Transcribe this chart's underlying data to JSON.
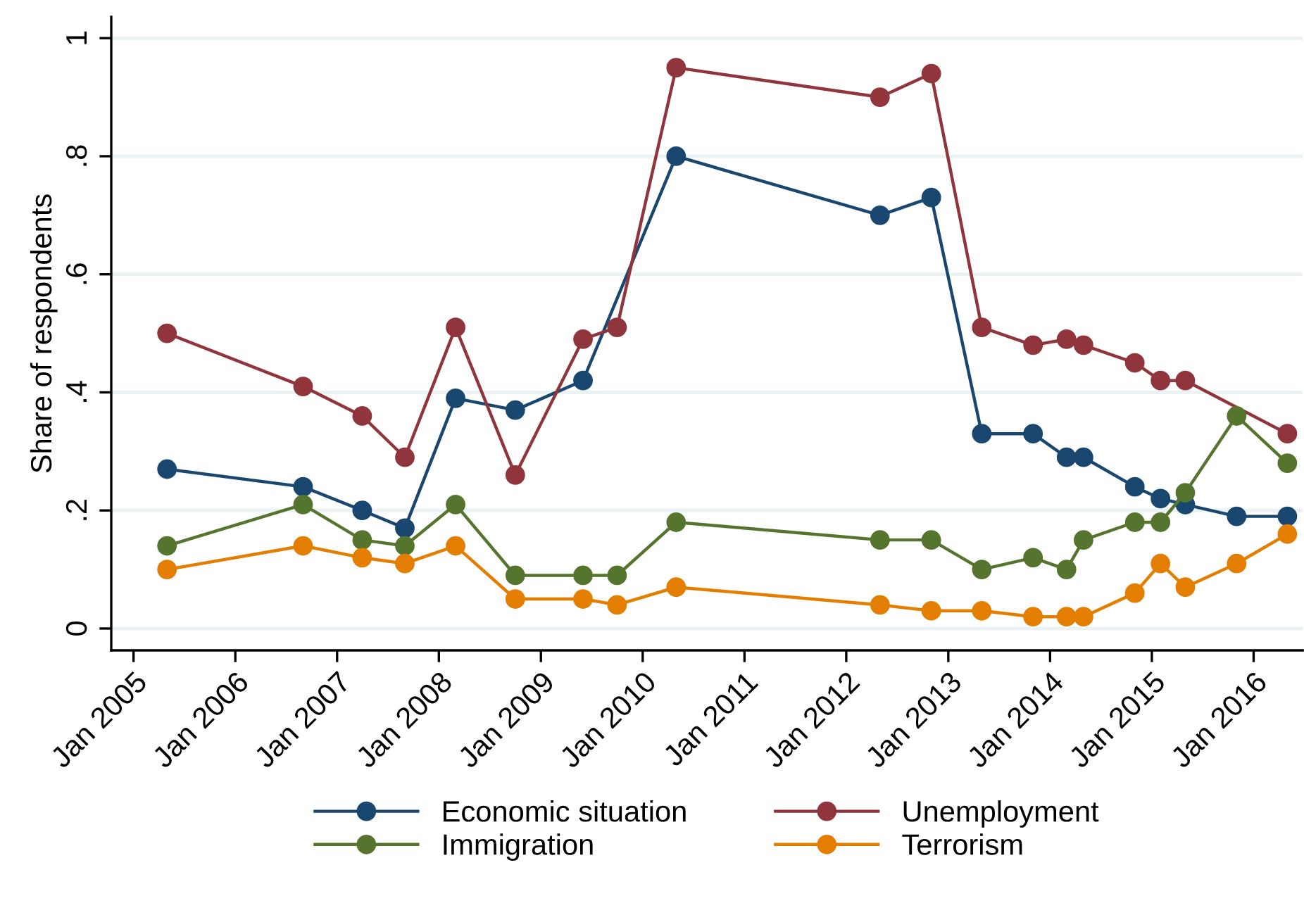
{
  "chart_data": {
    "type": "line",
    "ylabel": "Share of respondents",
    "x": [
      "2005-05",
      "2006-09",
      "2007-04",
      "2007-09",
      "2008-03",
      "2008-10",
      "2009-06",
      "2009-10",
      "2010-05",
      "2012-05",
      "2012-11",
      "2013-05",
      "2013-11",
      "2014-03",
      "2014-05",
      "2014-11",
      "2015-02",
      "2015-05",
      "2015-11",
      "2016-05"
    ],
    "series": [
      {
        "name": "Economic situation",
        "color": "#1a476f",
        "values": [
          0.27,
          0.24,
          0.2,
          0.17,
          0.39,
          0.37,
          0.42,
          null,
          0.8,
          0.7,
          0.73,
          0.33,
          0.33,
          0.29,
          0.29,
          0.24,
          0.22,
          0.21,
          0.19,
          0.19
        ]
      },
      {
        "name": "Unemployment",
        "color": "#90353b",
        "values": [
          0.5,
          0.41,
          0.36,
          0.29,
          0.51,
          0.26,
          0.49,
          0.51,
          0.95,
          0.9,
          0.94,
          0.51,
          0.48,
          0.49,
          0.48,
          0.45,
          0.42,
          0.42,
          null,
          0.33
        ]
      },
      {
        "name": "Immigration",
        "color": "#55752f",
        "values": [
          0.14,
          0.21,
          0.15,
          0.14,
          0.21,
          0.09,
          0.09,
          0.09,
          0.18,
          0.15,
          0.15,
          0.1,
          0.12,
          0.1,
          0.15,
          0.18,
          0.18,
          0.23,
          0.36,
          0.28
        ]
      },
      {
        "name": "Terrorism",
        "color": "#e37e00",
        "values": [
          0.1,
          0.14,
          0.12,
          0.11,
          0.14,
          0.05,
          0.05,
          0.04,
          0.07,
          0.04,
          0.03,
          0.03,
          0.02,
          0.02,
          0.02,
          0.06,
          0.11,
          0.07,
          0.11,
          0.16
        ]
      }
    ],
    "xlim": [
      "2004-10-13",
      "2016-06-25"
    ],
    "xticks": [
      {
        "value": "2005-01",
        "label": "Jan 2005"
      },
      {
        "value": "2006-01",
        "label": "Jan 2006"
      },
      {
        "value": "2007-01",
        "label": "Jan 2007"
      },
      {
        "value": "2008-01",
        "label": "Jan 2008"
      },
      {
        "value": "2009-01",
        "label": "Jan 2009"
      },
      {
        "value": "2010-01",
        "label": "Jan 2010"
      },
      {
        "value": "2011-01",
        "label": "Jan 2011"
      },
      {
        "value": "2012-01",
        "label": "Jan 2012"
      },
      {
        "value": "2013-01",
        "label": "Jan 2013"
      },
      {
        "value": "2014-01",
        "label": "Jan 2014"
      },
      {
        "value": "2015-01",
        "label": "Jan 2015"
      },
      {
        "value": "2016-01",
        "label": "Jan 2016"
      }
    ],
    "ylim": [
      -0.037,
      1.036
    ],
    "yticks": [
      {
        "value": 0,
        "label": "0"
      },
      {
        "value": 0.2,
        "label": ".2"
      },
      {
        "value": 0.4,
        "label": ".4"
      },
      {
        "value": 0.6,
        "label": ".6"
      },
      {
        "value": 0.8,
        "label": ".8"
      },
      {
        "value": 1,
        "label": "1"
      }
    ],
    "grid": "y",
    "legend": "bottom",
    "marker": "circle",
    "line_style": "solid"
  }
}
